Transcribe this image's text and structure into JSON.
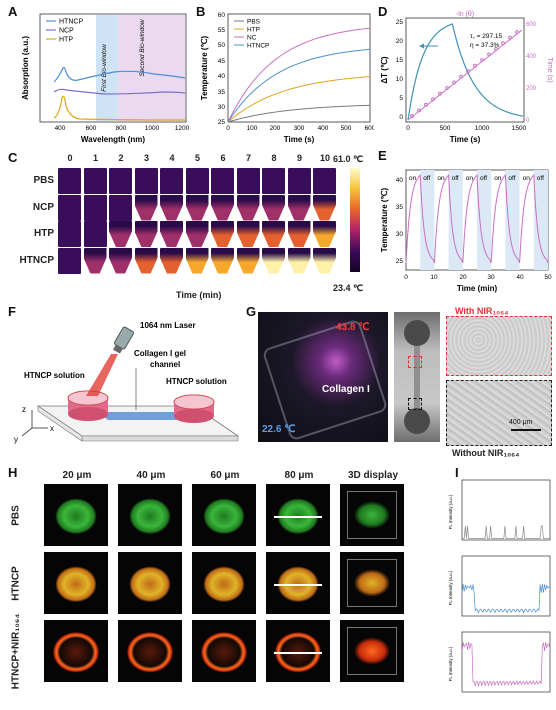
{
  "panels": {
    "A": "A",
    "B": "B",
    "C": "C",
    "D": "D",
    "E": "E",
    "F": "F",
    "G": "G",
    "H": "H",
    "I": "I"
  },
  "colors": {
    "htncp": "#4b8fd6",
    "ncp": "#7b6fd0",
    "htp": "#e3a51e",
    "pbs": "#7a7a7a",
    "bio1": "#cfe3f6",
    "bio2": "#ead9ef",
    "pink": "#c96fc2",
    "teal": "#3f93b5"
  },
  "panelA": {
    "xlabel": "Wavelength (nm)",
    "ylabel": "Absorption (a.u.)",
    "legend": [
      "HTNCP",
      "NCP",
      "HTP"
    ],
    "bio1": "First Bio-window",
    "bio2": "Second Bio-window",
    "xticks": [
      "400",
      "600",
      "800",
      "1000",
      "1200"
    ]
  },
  "panelB": {
    "xlabel": "Time (s)",
    "ylabel": "Temperature (℃)",
    "legend": [
      "PBS",
      "HTP",
      "NC",
      "HTNCP"
    ],
    "xticks": [
      "0",
      "100",
      "200",
      "300",
      "400",
      "500",
      "600"
    ],
    "yticks": [
      "25",
      "30",
      "35",
      "40",
      "45",
      "50",
      "55",
      "60"
    ]
  },
  "panelD": {
    "xlabel": "Time (s)",
    "ylabel": "ΔT (℃)",
    "ylabel2": "Time (s)",
    "toplabel": "-ln (θ)",
    "tau": "τ꜀ = 297.15",
    "eta": "η = 37.3%",
    "xticks": [
      "0",
      "500",
      "1000",
      "1500"
    ],
    "yticks": [
      "0",
      "5",
      "10",
      "15",
      "20",
      "25"
    ],
    "y2ticks": [
      "0",
      "200",
      "400",
      "600"
    ],
    "x2ticks": [
      "0",
      "1",
      "2"
    ]
  },
  "panelE": {
    "xlabel": "Time (min)",
    "ylabel": "Temperature (℃)",
    "onoff": [
      "on",
      "off",
      "on",
      "off",
      "on",
      "off",
      "on",
      "off",
      "on",
      "off"
    ],
    "xticks": [
      "0",
      "10",
      "20",
      "30",
      "40",
      "50"
    ],
    "yticks": [
      "25",
      "30",
      "35",
      "40"
    ]
  },
  "panelC": {
    "times": [
      "0",
      "1",
      "2",
      "3",
      "4",
      "5",
      "6",
      "7",
      "8",
      "9",
      "10"
    ],
    "rows": [
      "PBS",
      "NCP",
      "HTP",
      "HTNCP"
    ],
    "xlabel": "Time (min)",
    "tmax": "61.0 ℃",
    "tmin": "23.4 ℃"
  },
  "panelF": {
    "laser": "1064 nm Laser",
    "gel": "Collagen I gel",
    "channel": "channel",
    "left": "HTNCP solution",
    "right": "HTNCP solution",
    "z": "z",
    "y": "y",
    "x": "x"
  },
  "panelG": {
    "hot": "43.8 ℃",
    "cold": "22.6 ℃",
    "collagen": "Collagen I",
    "with": "With NIR₁₀₆₄",
    "without": "Without NIR₁₀₆₄",
    "scale": "400 μm"
  },
  "panelH": {
    "cols": [
      "20 μm",
      "40 μm",
      "60 μm",
      "80 μm",
      "3D display"
    ],
    "rows": [
      "PBS",
      "HTNCP",
      "HTNCP+NIR₁₀₆₄"
    ]
  },
  "panelI": {
    "ylabel": "FL Intensity (a.u.)"
  }
}
